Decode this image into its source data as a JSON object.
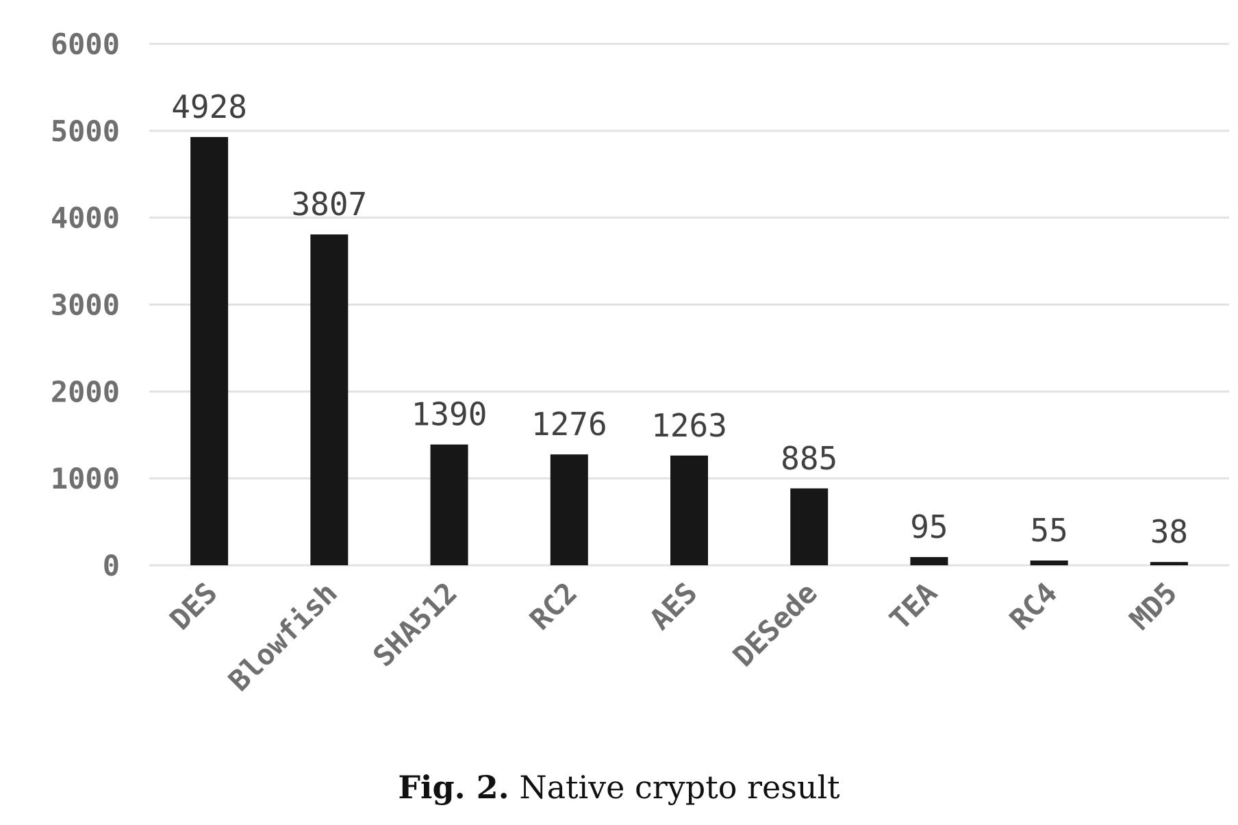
{
  "caption": {
    "figure_number": "Fig. 2.",
    "text": "Native crypto result"
  },
  "chart_data": {
    "type": "bar",
    "categories": [
      "DES",
      "Blowfish",
      "SHA512",
      "RC2",
      "AES",
      "DESede",
      "TEA",
      "RC4",
      "MD5"
    ],
    "values": [
      4928,
      3807,
      1390,
      1276,
      1263,
      885,
      95,
      55,
      38
    ],
    "data_labels": [
      "4928",
      "3807",
      "1390",
      "1276",
      "1263",
      "885",
      "95",
      "55",
      "38"
    ],
    "yticks": [
      0,
      1000,
      2000,
      3000,
      4000,
      5000,
      6000
    ],
    "ylim": [
      0,
      6000
    ],
    "grid": true,
    "bar_color": "#171717",
    "title": "",
    "xlabel": "",
    "ylabel": ""
  }
}
